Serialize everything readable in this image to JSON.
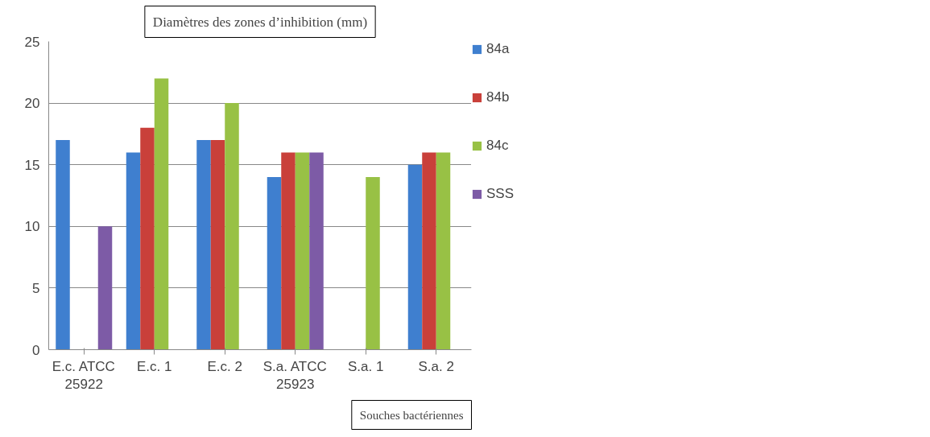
{
  "chart_data": {
    "type": "bar",
    "title": "Diamètres des zones d’inhibition (mm)",
    "xlabel": "Souches bactériennes",
    "categories": [
      "E.c. ATCC\n25922",
      "E.c. 1",
      "E.c. 2",
      "S.a. ATCC\n25923",
      "S.a. 1",
      "S.a. 2"
    ],
    "series": [
      {
        "name": "84a",
        "color": "#3f7fcf",
        "values": [
          17,
          16,
          17,
          14,
          null,
          15
        ]
      },
      {
        "name": "84b",
        "color": "#c9403a",
        "values": [
          null,
          18,
          17,
          16,
          null,
          16
        ]
      },
      {
        "name": "84c",
        "color": "#98c145",
        "values": [
          null,
          22,
          20,
          16,
          14,
          16
        ]
      },
      {
        "name": "SSS",
        "color": "#7d5ba6",
        "values": [
          10,
          null,
          null,
          16,
          null,
          null
        ]
      }
    ],
    "ylim": [
      0,
      25
    ],
    "yticks": [
      0,
      5,
      10,
      15,
      20,
      25
    ],
    "grid": "y",
    "legend": "right"
  }
}
